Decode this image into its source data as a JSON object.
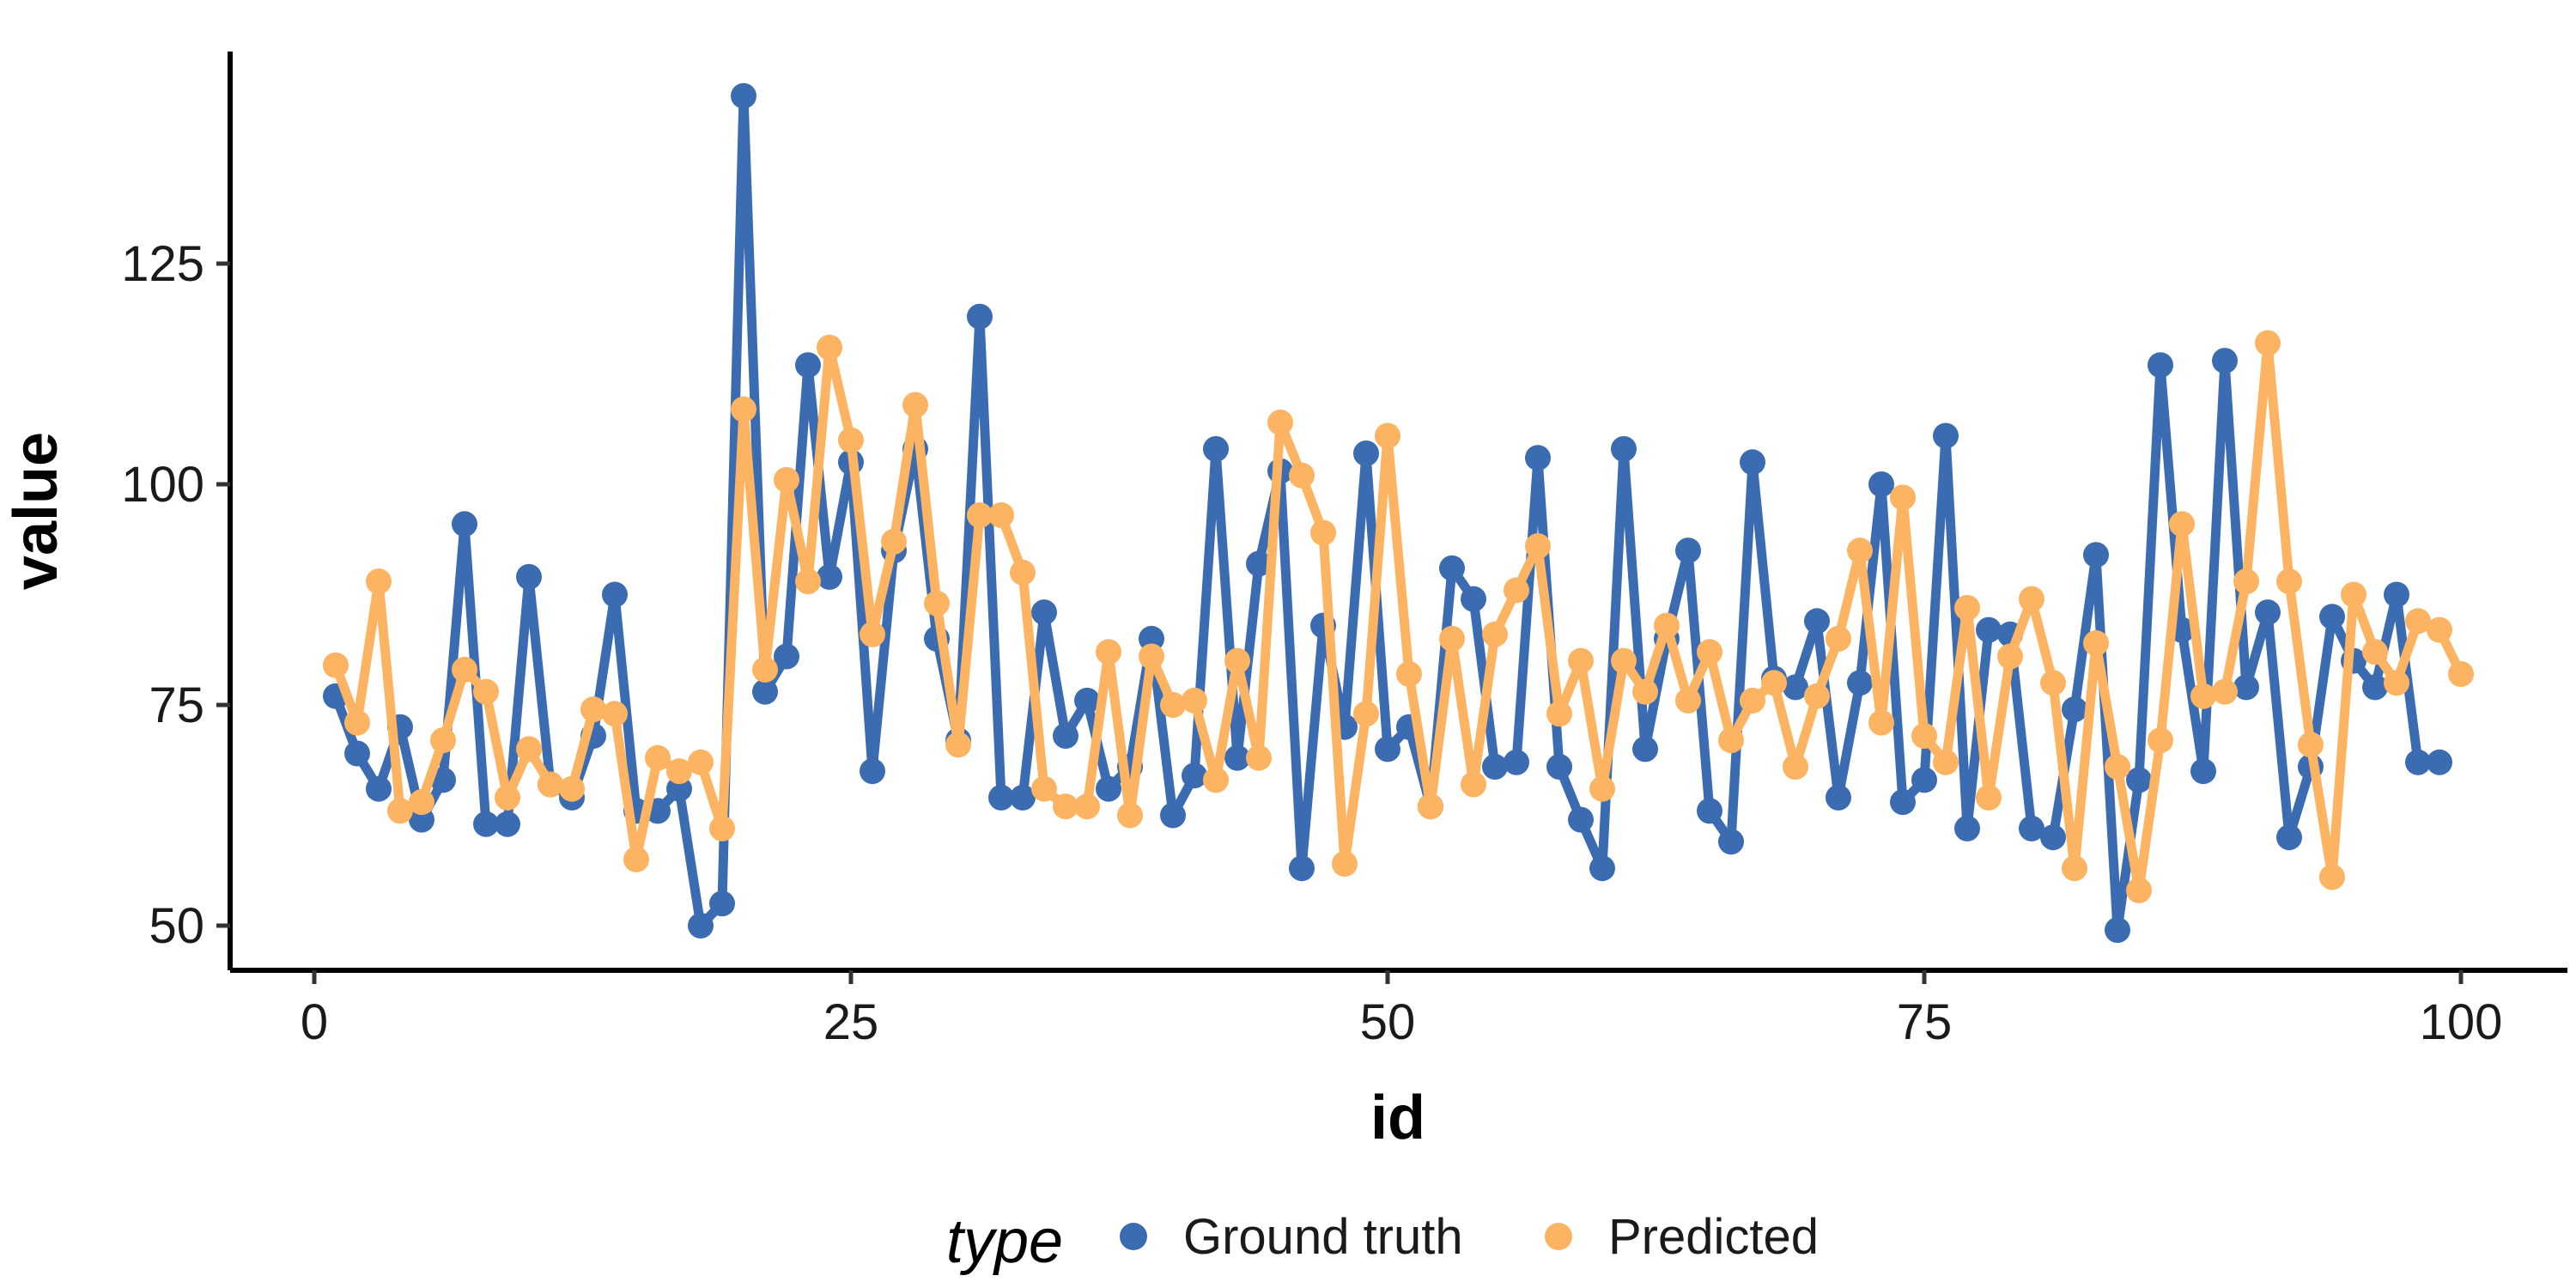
{
  "chart_data": {
    "type": "line",
    "xlabel": "id",
    "ylabel": "value",
    "xlim": [
      -1,
      103
    ],
    "ylim": [
      45,
      145
    ],
    "x_ticks": [
      0,
      25,
      50,
      75,
      100
    ],
    "y_ticks": [
      50,
      75,
      100,
      125
    ],
    "grid": false,
    "legend": {
      "title": "type",
      "placement": "bottom"
    },
    "x": [
      1,
      2,
      3,
      4,
      5,
      6,
      7,
      8,
      9,
      10,
      11,
      12,
      13,
      14,
      15,
      16,
      17,
      18,
      19,
      20,
      21,
      22,
      23,
      24,
      25,
      26,
      27,
      28,
      29,
      30,
      31,
      32,
      33,
      34,
      35,
      36,
      37,
      38,
      39,
      40,
      41,
      42,
      43,
      44,
      45,
      46,
      47,
      48,
      49,
      50,
      51,
      52,
      53,
      54,
      55,
      56,
      57,
      58,
      59,
      60,
      61,
      62,
      63,
      64,
      65,
      66,
      67,
      68,
      69,
      70,
      71,
      72,
      73,
      74,
      75,
      76,
      77,
      78,
      79,
      80,
      81,
      82,
      83,
      84,
      85,
      86,
      87,
      88,
      89,
      90,
      91,
      92,
      93,
      94,
      95,
      96,
      97,
      98,
      99,
      100
    ],
    "series": [
      {
        "name": "Ground truth",
        "color": "#3b6bb0",
        "values": [
          76,
          69.5,
          65.5,
          72.5,
          62,
          66.5,
          95.5,
          61.5,
          61.5,
          89.5,
          66,
          64.5,
          71.5,
          87.5,
          63,
          63,
          65.5,
          50,
          52.5,
          144,
          76.5,
          80.5,
          113.5,
          89.5,
          102.5,
          67.5,
          92.5,
          104,
          82.5,
          71,
          119,
          64.5,
          64.5,
          85.5,
          71.5,
          75.5,
          65.5,
          68,
          82.5,
          62.5,
          67,
          104,
          69,
          91,
          101.5,
          56.5,
          84,
          72.5,
          103.5,
          70,
          72.5,
          63.5,
          90.5,
          87,
          68,
          68.5,
          103,
          68,
          62,
          56.5,
          104,
          70,
          82.5,
          92.5,
          63,
          59.5,
          102.5,
          78,
          77,
          84.5,
          64.5,
          77.5,
          100,
          64,
          66.5,
          105.5,
          61,
          83.5,
          83,
          61,
          60,
          74.5,
          92,
          49.5,
          66.5,
          113.5,
          83.5,
          67.5,
          114,
          77,
          85.5,
          60,
          68,
          85,
          80,
          77,
          87.5,
          68.5,
          68.5,
          null
        ]
      },
      {
        "name": "Predicted",
        "color": "#fdb462",
        "values": [
          79.5,
          73,
          89,
          63,
          64,
          71,
          79,
          76.5,
          64.5,
          70,
          66,
          65.5,
          74.5,
          74,
          57.5,
          69,
          67.5,
          68.5,
          61,
          108.5,
          79,
          100.5,
          89,
          115.5,
          105,
          83,
          93.5,
          109,
          86.5,
          70.5,
          96.5,
          96.5,
          90,
          65.5,
          63.5,
          63.5,
          81,
          62.5,
          80.5,
          75,
          75.5,
          66.5,
          80,
          69,
          107,
          101,
          94.5,
          57,
          74,
          105.5,
          78.5,
          63.5,
          82.5,
          66,
          83,
          88,
          93,
          74,
          80,
          65.5,
          80,
          76.5,
          84,
          75.5,
          81,
          71,
          75.5,
          77.5,
          68,
          76,
          82.5,
          92.5,
          73,
          98.5,
          71.5,
          68.5,
          86,
          64.5,
          80.5,
          87,
          77.5,
          56.5,
          82,
          68,
          54,
          71,
          95.5,
          76,
          76.5,
          89,
          116,
          89,
          70.5,
          55.5,
          87.5,
          81,
          77.5,
          84.5,
          83.5,
          78.5
        ]
      }
    ]
  }
}
